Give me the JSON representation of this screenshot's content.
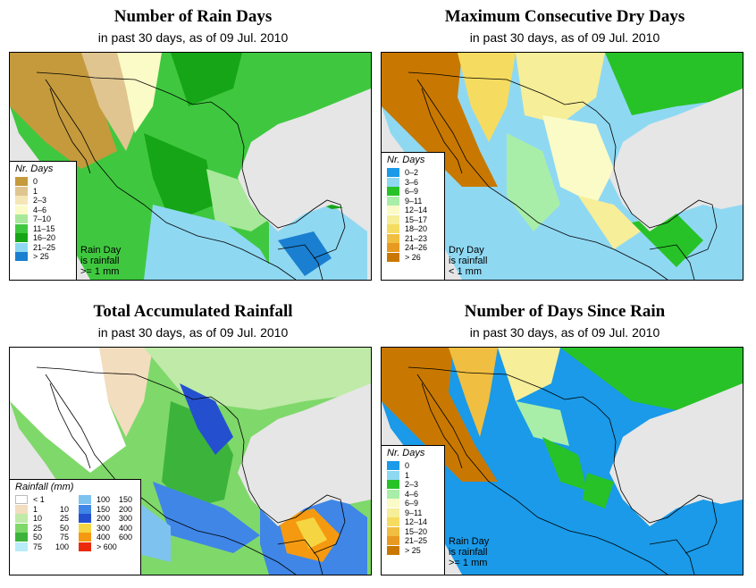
{
  "panels": [
    {
      "title": "Number of Rain Days",
      "subtitle": "in past 30 days, as of  09 Jul. 2010",
      "legend": {
        "title": "Nr. Days",
        "items": [
          {
            "label": "0",
            "color": "#c49a3c"
          },
          {
            "label": "1",
            "color": "#e0c590"
          },
          {
            "label": "2–3",
            "color": "#f5e6b8"
          },
          {
            "label": "4–6",
            "color": "#fbfbc8"
          },
          {
            "label": "7–10",
            "color": "#a8e89a"
          },
          {
            "label": "11–15",
            "color": "#3fc83f"
          },
          {
            "label": "16–20",
            "color": "#16a516"
          },
          {
            "label": "21–25",
            "color": "#8fd8f2"
          },
          {
            "label": "> 25",
            "color": "#1a7fd0"
          }
        ]
      },
      "note": [
        "Rain Day",
        "is rainfall",
        ">= 1 mm"
      ]
    },
    {
      "title": "Maximum Consecutive Dry Days",
      "subtitle": "in past 30 days, as of  09 Jul. 2010",
      "legend": {
        "title": "Nr. Days",
        "items": [
          {
            "label": "0–2",
            "color": "#1a9ae8"
          },
          {
            "label": "3–6",
            "color": "#8fd8f2"
          },
          {
            "label": "6–9",
            "color": "#27c227"
          },
          {
            "label": "9–11",
            "color": "#a8eea8"
          },
          {
            "label": "12–14",
            "color": "#fbfbc8"
          },
          {
            "label": "15–17",
            "color": "#f6ee98"
          },
          {
            "label": "18–20",
            "color": "#f5dc60"
          },
          {
            "label": "21–23",
            "color": "#f0be40"
          },
          {
            "label": "24–26",
            "color": "#e89a20"
          },
          {
            "label": "> 26",
            "color": "#c87800"
          }
        ]
      },
      "note": [
        "Dry Day",
        "is rainfall",
        "< 1 mm"
      ]
    },
    {
      "title": "Total Accumulated Rainfall",
      "subtitle": "in past 30 days, as of  09 Jul. 2010",
      "legend": {
        "title": "Rainfall (mm)",
        "items": [
          {
            "lo": "< 1",
            "hi": "",
            "color": "#ffffff"
          },
          {
            "lo": "1",
            "hi": "10",
            "color": "#f2ddbe"
          },
          {
            "lo": "10",
            "hi": "25",
            "color": "#bfeaa8"
          },
          {
            "lo": "25",
            "hi": "50",
            "color": "#7fd86a"
          },
          {
            "lo": "50",
            "hi": "75",
            "color": "#3cb43c"
          },
          {
            "lo": "75",
            "hi": "100",
            "color": "#b8ecf8"
          },
          {
            "lo": "100",
            "hi": "150",
            "color": "#7ec3f0"
          },
          {
            "lo": "150",
            "hi": "200",
            "color": "#3f86e6"
          },
          {
            "lo": "200",
            "hi": "300",
            "color": "#2450d0"
          },
          {
            "lo": "300",
            "hi": "400",
            "color": "#f5d642"
          },
          {
            "lo": "400",
            "hi": "600",
            "color": "#f59a10"
          },
          {
            "lo": "> 600",
            "hi": "",
            "color": "#ea2a0a"
          }
        ]
      },
      "note": []
    },
    {
      "title": "Number of Days Since Rain",
      "subtitle": "in past 30 days, as of  09 Jul. 2010",
      "legend": {
        "title": "Nr. Days",
        "items": [
          {
            "label": "0",
            "color": "#1a9ae8"
          },
          {
            "label": "1",
            "color": "#8fd8f2"
          },
          {
            "label": "2–3",
            "color": "#27c227"
          },
          {
            "label": "4–6",
            "color": "#a8eea8"
          },
          {
            "label": "6–9",
            "color": "#fbfbc8"
          },
          {
            "label": "9–11",
            "color": "#f6ee98"
          },
          {
            "label": "12–14",
            "color": "#f5dc60"
          },
          {
            "label": "15–20",
            "color": "#f0be40"
          },
          {
            "label": "21–25",
            "color": "#e89a20"
          },
          {
            "label": "> 25",
            "color": "#c87800"
          }
        ]
      },
      "note": [
        "Rain Day",
        "is rainfall",
        ">= 1 mm"
      ]
    }
  ]
}
